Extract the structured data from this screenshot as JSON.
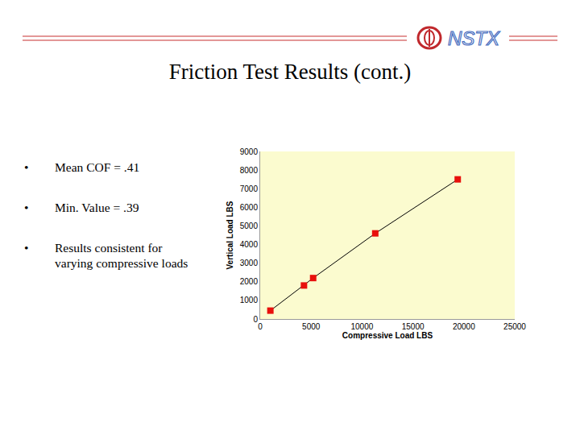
{
  "slide": {
    "title": "Friction Test Results (cont.)",
    "logo": "NSTX",
    "bullets": [
      "Mean COF = .41",
      "Min. Value = .39",
      "Results consistent for varying compressive loads"
    ]
  },
  "chart_data": {
    "type": "line",
    "marker": "square",
    "line_style": "solid",
    "color": "#e8100c",
    "x_label": "Compressive Load LBS",
    "y_label": "Vertical Load LBS",
    "x": [
      1000,
      4300,
      5200,
      11300,
      19400
    ],
    "values": [
      450,
      1800,
      2200,
      4600,
      7500
    ],
    "xlim": [
      0,
      25000
    ],
    "xticks": [
      0,
      5000,
      10000,
      15000,
      20000,
      25000
    ],
    "ylim": [
      0,
      9000
    ],
    "yticks": [
      0,
      1000,
      2000,
      3000,
      4000,
      5000,
      6000,
      7000,
      8000,
      9000
    ],
    "grid": false
  }
}
